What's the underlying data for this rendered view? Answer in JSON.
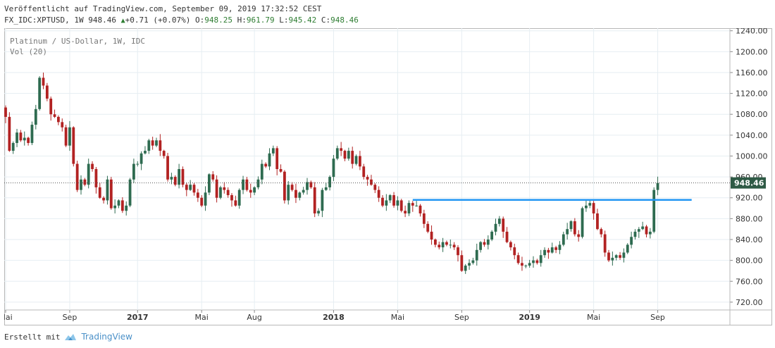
{
  "header": {
    "line1": "Veröffentlicht auf TradingView.com, September 09, 2019 17:32:52 CEST",
    "symbol_interval": "FX_IDC:XPTUSD, 1W",
    "last": "948.46",
    "change_icon": "triangle-up-icon",
    "change": "+0.71 (+0.07%)",
    "open_label": "O:",
    "open": "948.25",
    "high_label": "H:",
    "high": "961.79",
    "low_label": "L:",
    "low": "945.42",
    "close_label": "C:",
    "close": "948.46"
  },
  "legend": {
    "title": "Platinum / US-Dollar, 1W, IDC",
    "volume": "Vol (20)"
  },
  "footer": {
    "prefix": "Erstellt mit",
    "logo_icon": "tradingview-logo-icon",
    "brand": "TradingView"
  },
  "colors": {
    "up": "#2e6b50",
    "down": "#b22222",
    "level_line": "#2196f3",
    "last_price_bg": "#2e5a45",
    "grid": "#e6eef2"
  },
  "chart_data": {
    "type": "candlestick",
    "symbol": "FX_IDC:XPTUSD",
    "interval": "1W",
    "ylim": [
      705,
      1245
    ],
    "y_ticks": [
      720,
      760,
      800,
      840,
      880,
      920,
      960,
      1000,
      1040,
      1080,
      1120,
      1160,
      1200,
      1240
    ],
    "x_ticks": [
      {
        "label": "Mai",
        "bold": false
      },
      {
        "label": "Sep",
        "bold": false
      },
      {
        "label": "2017",
        "bold": true
      },
      {
        "label": "Mai",
        "bold": false
      },
      {
        "label": "Aug",
        "bold": false
      },
      {
        "label": "2018",
        "bold": true
      },
      {
        "label": "Mai",
        "bold": false
      },
      {
        "label": "Sep",
        "bold": false
      },
      {
        "label": "2019",
        "bold": true
      },
      {
        "label": "Mai",
        "bold": false
      },
      {
        "label": "Sep",
        "bold": false
      }
    ],
    "x_tick_index": [
      0,
      17,
      35,
      52,
      66,
      87,
      104,
      121,
      139,
      156,
      173
    ],
    "last_price": 948.46,
    "horizontal_level": {
      "price": 916,
      "from_index": 108,
      "to_index": 182
    },
    "grid": true,
    "closes": [
      1075,
      1010,
      1025,
      1045,
      1030,
      1035,
      1025,
      1060,
      1090,
      1150,
      1135,
      1110,
      1080,
      1075,
      1065,
      1055,
      1020,
      1055,
      985,
      935,
      955,
      945,
      985,
      975,
      940,
      920,
      915,
      955,
      900,
      905,
      915,
      895,
      905,
      955,
      985,
      985,
      1005,
      1010,
      1030,
      1020,
      1030,
      1010,
      1000,
      955,
      960,
      945,
      975,
      945,
      935,
      945,
      930,
      920,
      905,
      930,
      965,
      955,
      920,
      940,
      935,
      925,
      915,
      905,
      935,
      955,
      935,
      930,
      940,
      955,
      985,
      980,
      1005,
      1015,
      975,
      970,
      915,
      945,
      935,
      920,
      930,
      935,
      950,
      940,
      890,
      895,
      935,
      940,
      960,
      995,
      1015,
      1010,
      995,
      1010,
      985,
      1000,
      980,
      960,
      955,
      945,
      935,
      920,
      905,
      915,
      925,
      905,
      915,
      895,
      890,
      910,
      905,
      905,
      890,
      870,
      855,
      840,
      830,
      825,
      835,
      830,
      830,
      825,
      810,
      780,
      790,
      795,
      800,
      820,
      835,
      830,
      840,
      855,
      870,
      880,
      855,
      835,
      825,
      810,
      795,
      790,
      790,
      795,
      800,
      795,
      810,
      820,
      815,
      825,
      820,
      830,
      850,
      860,
      875,
      850,
      845,
      900,
      905,
      910,
      890,
      860,
      850,
      815,
      800,
      805,
      810,
      805,
      815,
      830,
      845,
      855,
      860,
      865,
      850,
      855,
      935,
      948.46
    ]
  }
}
